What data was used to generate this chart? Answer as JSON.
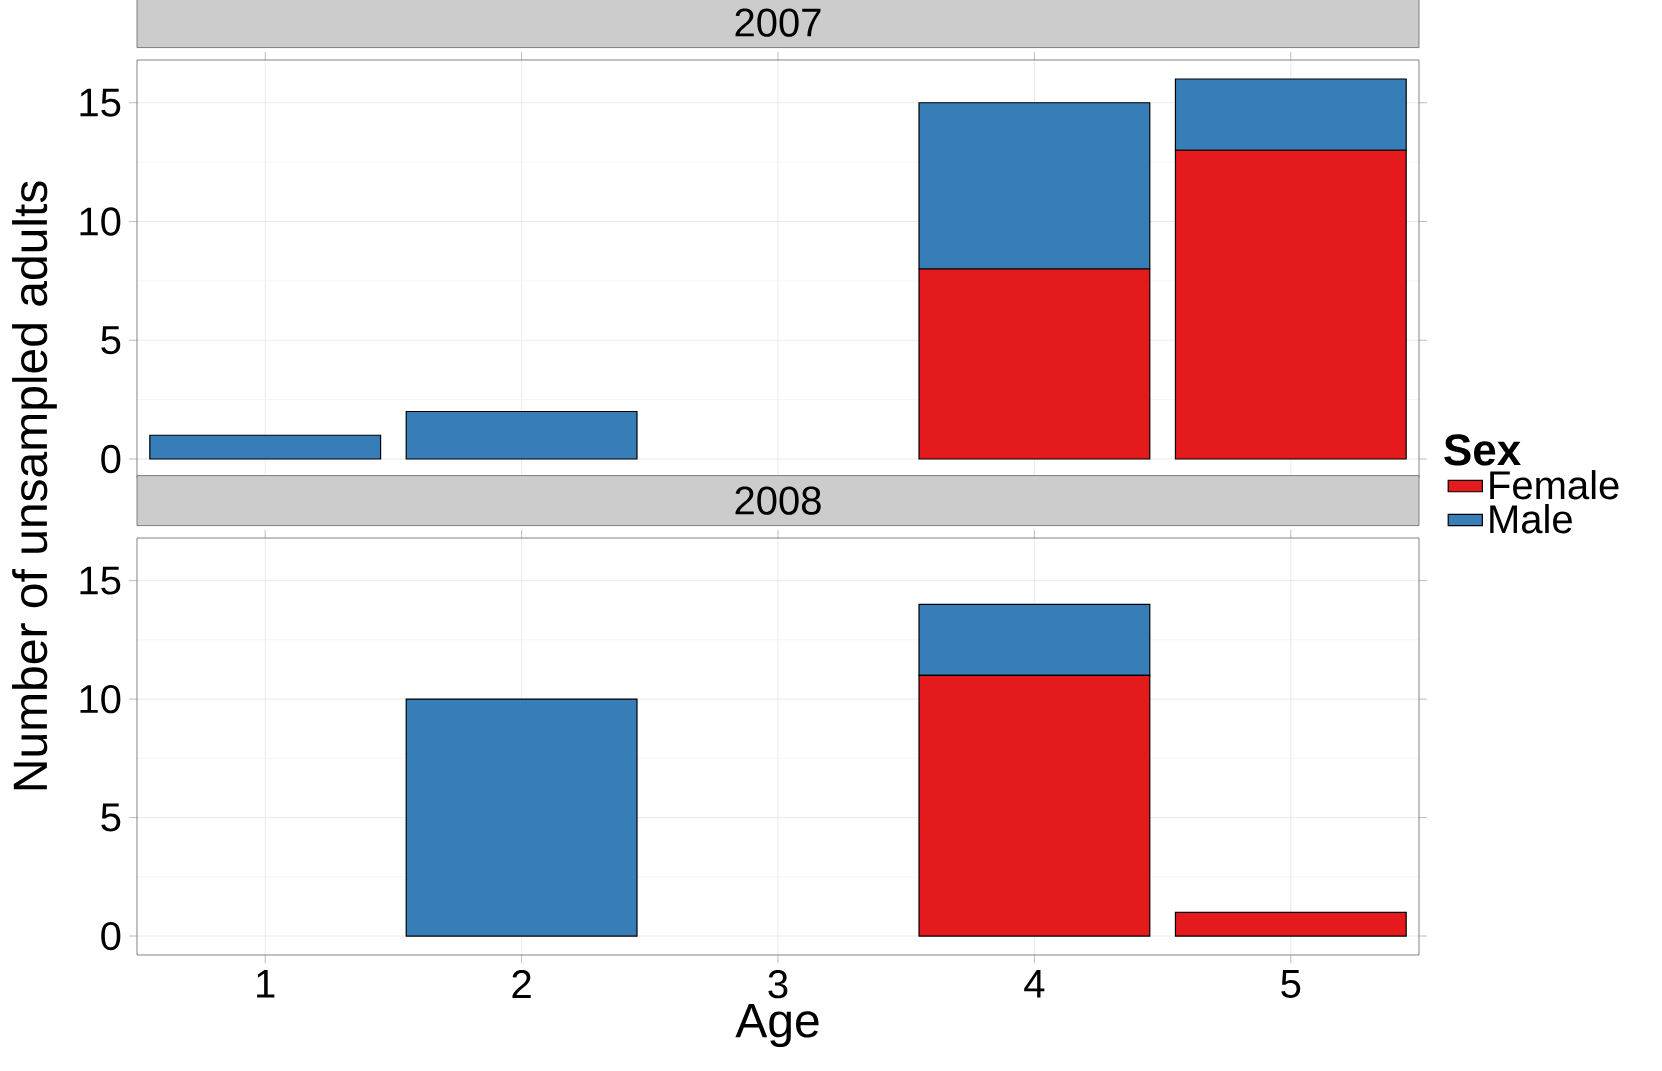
{
  "chart_data": [
    {
      "type": "bar",
      "title": "2007",
      "ylabel": "Number of unsampled adults",
      "legend_title": "Sex",
      "legend": "right",
      "stacked": true,
      "grid": true,
      "tick_labels": "y",
      "categories": [
        "1",
        "2",
        "3",
        "4",
        "5"
      ],
      "ylim": [
        -0.8,
        16.8
      ],
      "yticks": [
        0,
        5,
        10,
        15
      ],
      "series": [
        {
          "name": "Female",
          "color": "#e41a1c",
          "values": [
            0,
            0,
            0,
            8,
            13
          ]
        },
        {
          "name": "Male",
          "color": "#377eb8",
          "values": [
            1,
            2,
            0,
            7,
            3
          ]
        }
      ]
    },
    {
      "type": "bar",
      "title": "2008",
      "xlabel": "Age",
      "stacked": true,
      "grid": true,
      "categories": [
        "1",
        "2",
        "3",
        "4",
        "5"
      ],
      "ylim": [
        -0.8,
        16.8
      ],
      "yticks": [
        0,
        5,
        10,
        15
      ],
      "series": [
        {
          "color": "#e41a1c",
          "values": [
            0,
            0,
            0,
            11,
            1
          ]
        },
        {
          "color": "#377eb8",
          "values": [
            0,
            10,
            0,
            3,
            0
          ]
        }
      ]
    }
  ]
}
